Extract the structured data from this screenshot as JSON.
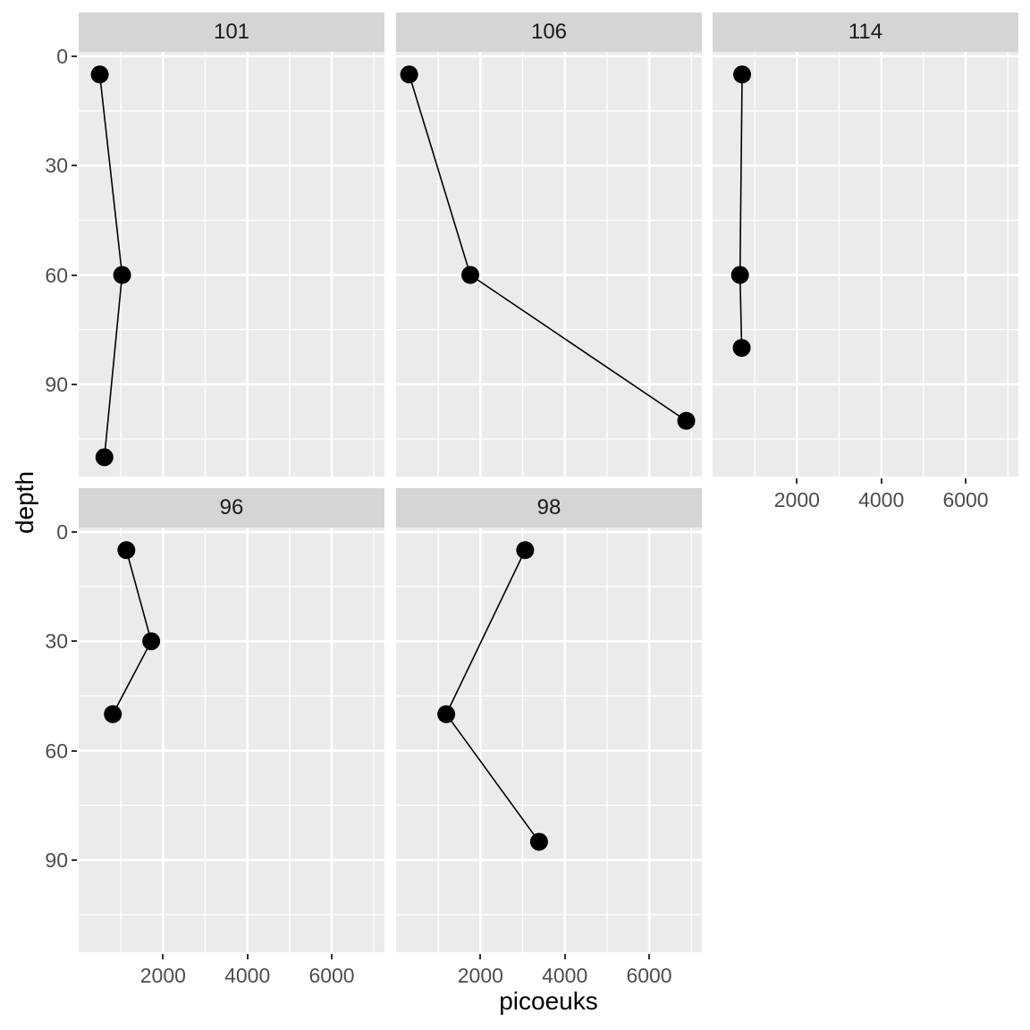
{
  "chart_data": {
    "type": "scatter",
    "subtype": "faceted-line-scatter-depth-profiles",
    "title": "",
    "xlabel": "picoeuks",
    "ylabel": "depth",
    "x_ticks": [
      2000,
      4000,
      6000
    ],
    "x_minor_ticks": [
      1000,
      3000,
      5000,
      7000
    ],
    "y_ticks": [
      0,
      30,
      60,
      90
    ],
    "y_minor_ticks": [
      15,
      45,
      75,
      105
    ],
    "xlim": [
      0,
      7250
    ],
    "ylim": [
      -1.2,
      115.3
    ],
    "y_reversed": true,
    "grid": "on",
    "legend": "none",
    "facets": [
      {
        "label": "101",
        "row": 0,
        "col": 0,
        "series": [
          {
            "picoeuks": 500,
            "depth": 5
          },
          {
            "picoeuks": 1030,
            "depth": 60
          },
          {
            "picoeuks": 610,
            "depth": 110
          }
        ]
      },
      {
        "label": "106",
        "row": 0,
        "col": 1,
        "series": [
          {
            "picoeuks": 310,
            "depth": 5
          },
          {
            "picoeuks": 1760,
            "depth": 60
          },
          {
            "picoeuks": 6880,
            "depth": 100
          }
        ]
      },
      {
        "label": "114",
        "row": 0,
        "col": 2,
        "series": [
          {
            "picoeuks": 700,
            "depth": 5
          },
          {
            "picoeuks": 650,
            "depth": 60
          },
          {
            "picoeuks": 690,
            "depth": 80
          }
        ]
      },
      {
        "label": "96",
        "row": 1,
        "col": 0,
        "series": [
          {
            "picoeuks": 1130,
            "depth": 5
          },
          {
            "picoeuks": 1720,
            "depth": 30
          },
          {
            "picoeuks": 810,
            "depth": 50
          }
        ]
      },
      {
        "label": "98",
        "row": 1,
        "col": 1,
        "series": [
          {
            "picoeuks": 3060,
            "depth": 5
          },
          {
            "picoeuks": 1190,
            "depth": 50
          },
          {
            "picoeuks": 3390,
            "depth": 85
          }
        ]
      }
    ],
    "colors": {
      "panel_background": "#ebebeb",
      "strip_background": "#d5d5d5",
      "grid_major": "#ffffff",
      "grid_minor": "#ffffff",
      "point": "#000000",
      "line": "#000000",
      "axis_text": "#4d4d4d",
      "strip_text": "#1a1a1a",
      "tick_mark": "#333333",
      "figure_background": "#ffffff"
    }
  }
}
